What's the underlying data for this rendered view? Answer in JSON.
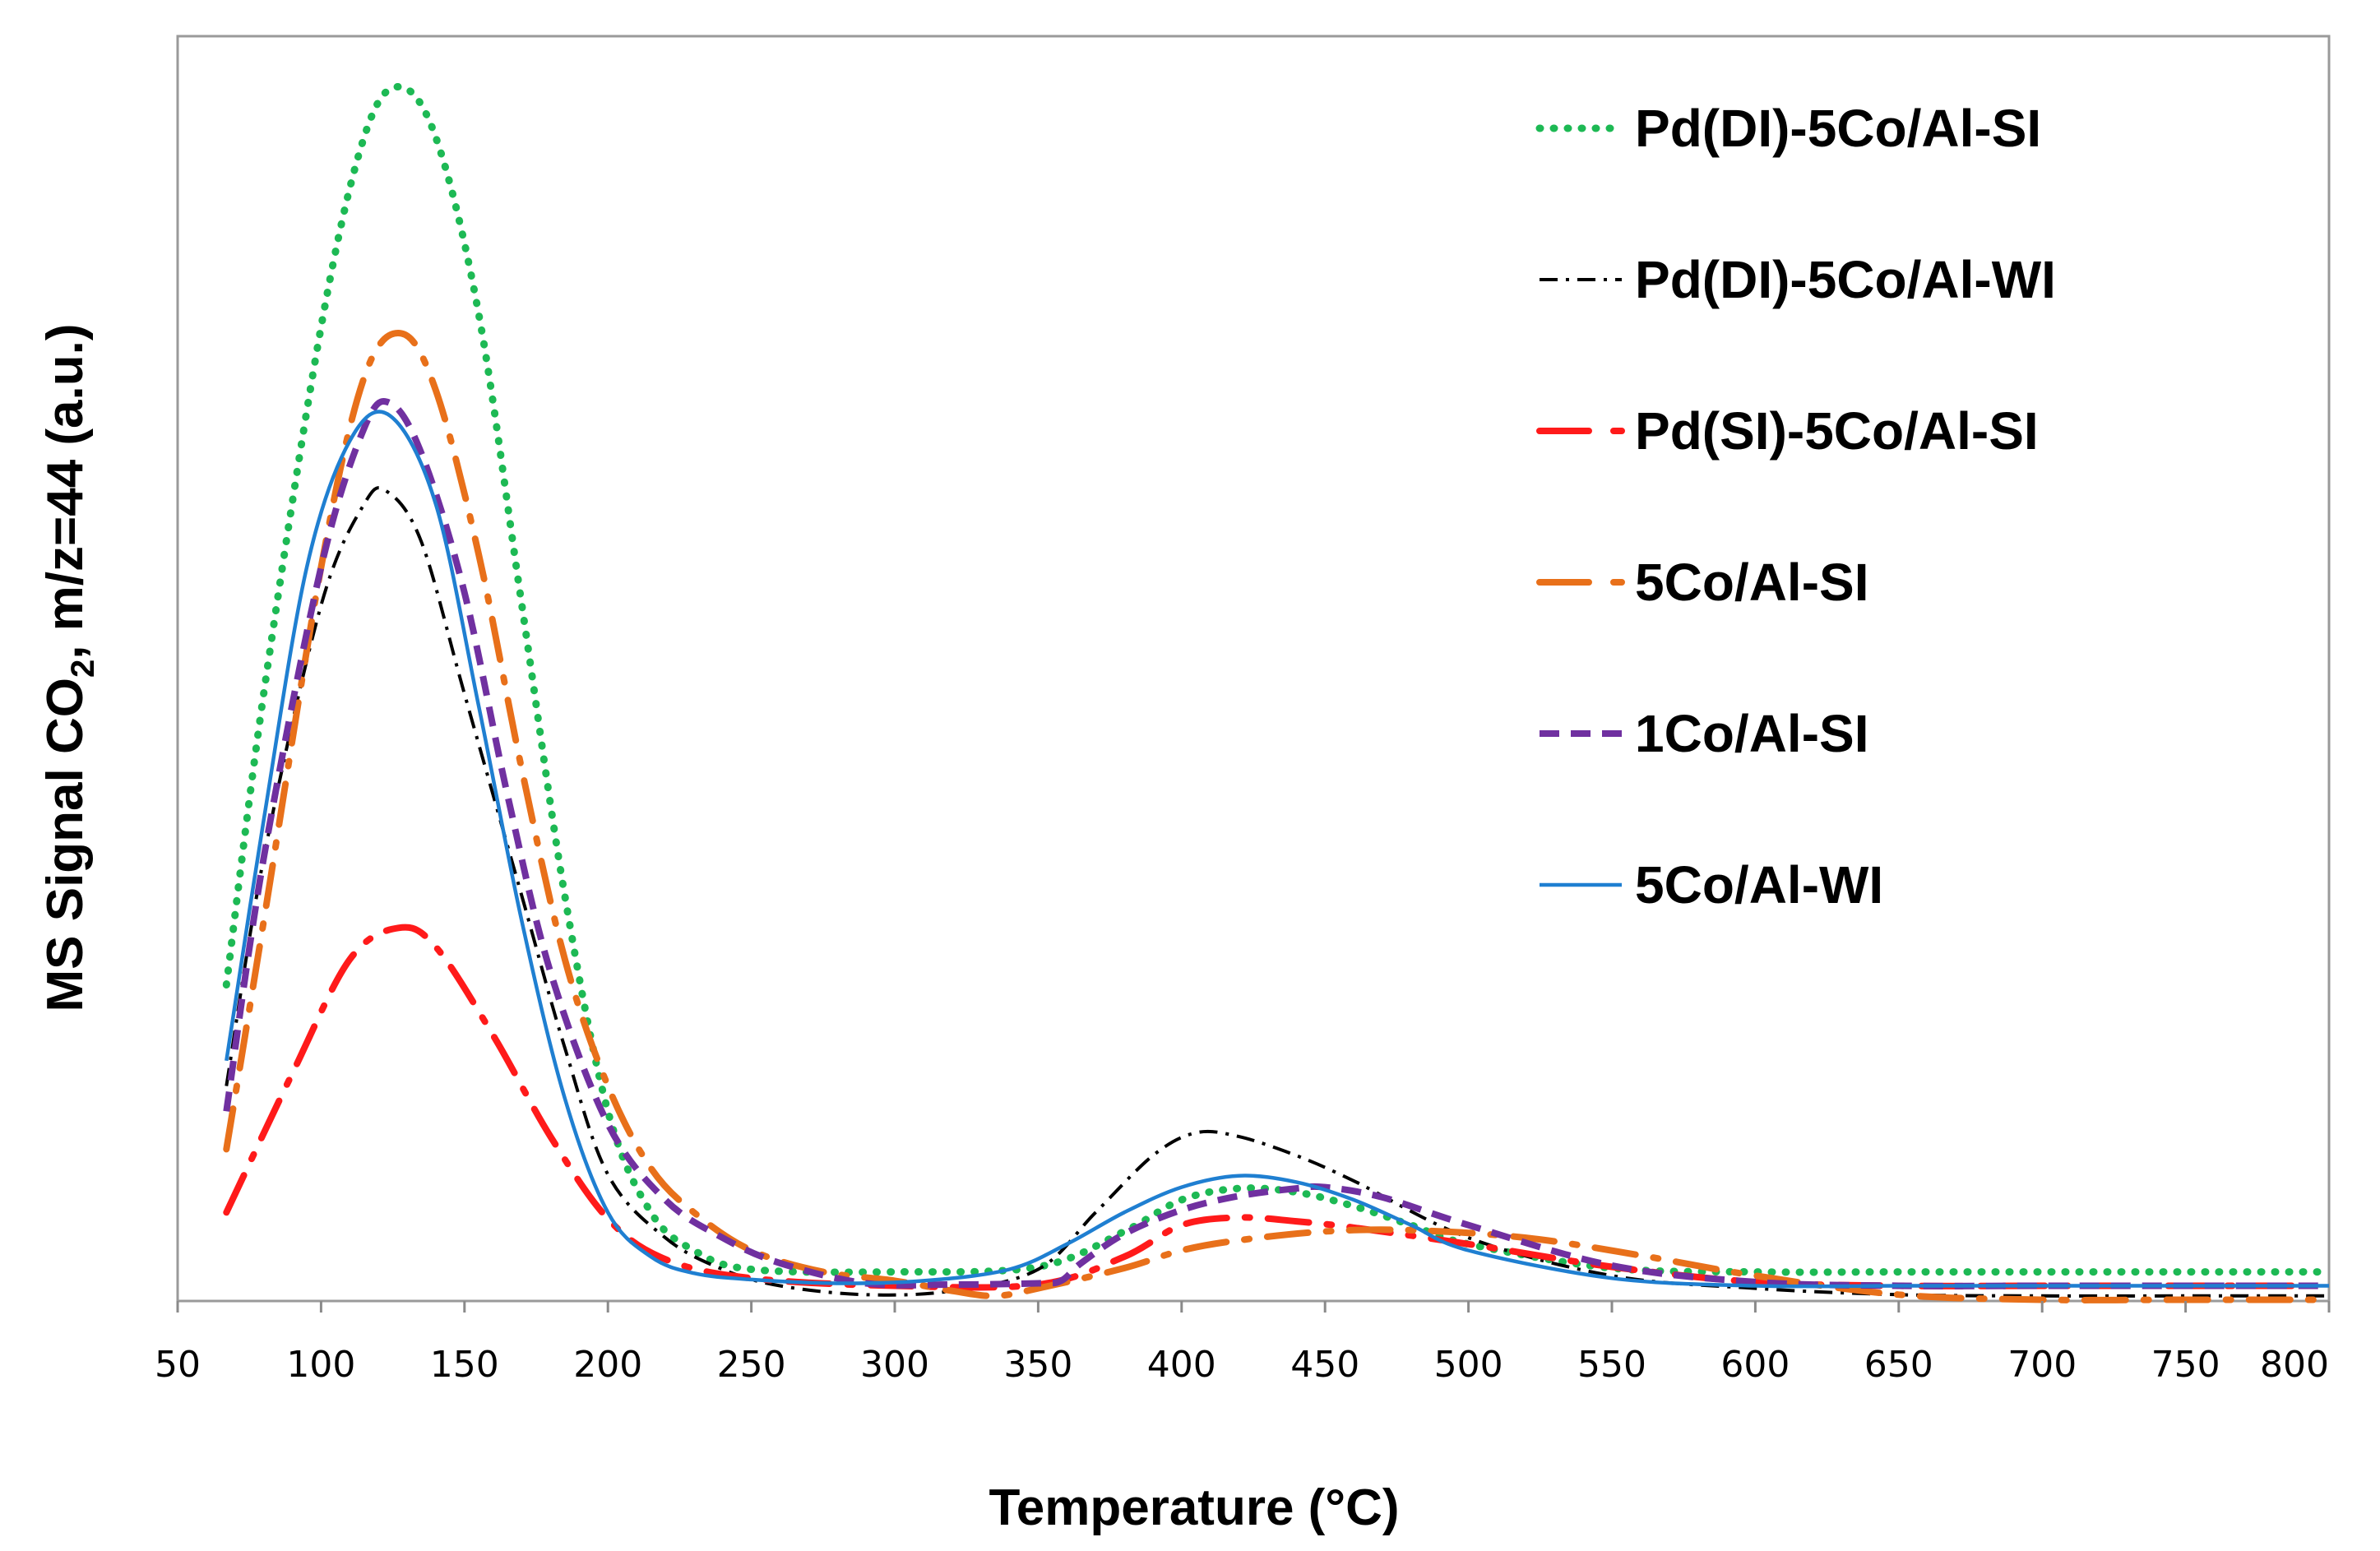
{
  "chart_data": {
    "type": "line",
    "title": "",
    "xlabel": "Temperature (°C)",
    "ylabel_main": "MS Signal CO",
    "ylabel_sub": "2",
    "ylabel_rest": ", m/z=44 (a.u.)",
    "xlim": [
      50,
      800
    ],
    "ylim": [
      0,
      100
    ],
    "xticks": [
      50,
      100,
      150,
      200,
      250,
      300,
      350,
      400,
      450,
      500,
      550,
      600,
      650,
      700,
      750,
      800
    ],
    "grid": false,
    "legend_position": "top-right",
    "series": [
      {
        "name": "Pd(DI)-5Co/Al-SI",
        "color": "#1db954",
        "dash": "dot",
        "x": [
          67,
          80,
          100,
          115,
          127,
          140,
          155,
          170,
          185,
          200,
          215,
          230,
          250,
          300,
          350,
          380,
          400,
          420,
          440,
          460,
          480,
          500,
          550,
          600,
          650,
          700,
          750,
          800
        ],
        "y": [
          25,
          48,
          77,
          92,
          96,
          92,
          78,
          55,
          32,
          15,
          7,
          4,
          2.5,
          2.3,
          2.7,
          5.5,
          8,
          8.9,
          8.6,
          7.5,
          6,
          4.5,
          2.6,
          2.3,
          2.3,
          2.3,
          2.3,
          2.3
        ]
      },
      {
        "name": "Pd(DI)-5Co/Al-WI",
        "color": "#000000",
        "dash": "dashdot",
        "x": [
          67,
          80,
          100,
          115,
          123,
          135,
          150,
          170,
          185,
          200,
          220,
          240,
          260,
          290,
          320,
          350,
          370,
          390,
          405,
          420,
          440,
          460,
          500,
          550,
          600,
          650,
          700,
          750,
          800
        ],
        "y": [
          17,
          35,
          55,
          63,
          64,
          60,
          48,
          32,
          20,
          10,
          5,
          2.5,
          1.2,
          0.5,
          0.8,
          2.5,
          7,
          11.5,
          13.3,
          13,
          11.5,
          9.5,
          5,
          2,
          1,
          0.5,
          0.4,
          0.4,
          0.4
        ]
      },
      {
        "name": "Pd(SI)-5Co/Al-SI",
        "color": "#ff1a1a",
        "dash": "longdashdot",
        "x": [
          67,
          90,
          110,
          127,
          140,
          160,
          180,
          200,
          220,
          250,
          300,
          350,
          380,
          400,
          420,
          440,
          460,
          500,
          550,
          600,
          650,
          700,
          750,
          800
        ],
        "y": [
          7,
          18,
          27,
          29.5,
          28,
          21,
          13,
          6.5,
          3.3,
          1.8,
          1.2,
          1.3,
          3.5,
          6,
          6.6,
          6.3,
          5.8,
          4.5,
          2.7,
          1.5,
          1.2,
          1.2,
          1.2,
          1.2
        ]
      },
      {
        "name": "5Co/Al-SI",
        "color": "#e8701a",
        "dash": "longdashdot",
        "x": [
          67,
          80,
          100,
          115,
          128,
          140,
          155,
          170,
          185,
          200,
          215,
          230,
          250,
          275,
          300,
          320,
          335,
          350,
          380,
          400,
          420,
          450,
          480,
          520,
          560,
          600,
          650,
          700,
          750,
          800
        ],
        "y": [
          12,
          30,
          58,
          73,
          76.5,
          72,
          59,
          42,
          27,
          17,
          10.5,
          7,
          4,
          2.3,
          1.6,
          0.8,
          0.4,
          1,
          2.6,
          4,
          4.8,
          5.5,
          5.6,
          5,
          3.6,
          2,
          0.5,
          0.1,
          0.1,
          0.1
        ]
      },
      {
        "name": "1Co/Al-SI",
        "color": "#7030a0",
        "dash": "dash",
        "x": [
          67,
          80,
          100,
          115,
          124,
          135,
          150,
          165,
          180,
          200,
          220,
          240,
          260,
          290,
          320,
          350,
          358,
          365,
          380,
          400,
          420,
          440,
          450,
          470,
          500,
          550,
          600,
          650,
          700,
          750,
          800
        ],
        "y": [
          15,
          35,
          58,
          69,
          71,
          67,
          56,
          40,
          26,
          14,
          8,
          5,
          3,
          1.4,
          1.3,
          1.4,
          1.6,
          3,
          5.3,
          7.2,
          8.3,
          8.9,
          9,
          8.2,
          6,
          2.8,
          1.5,
          1.2,
          1.2,
          1.2,
          1.2
        ]
      },
      {
        "name": "5Co/Al-WI",
        "color": "#1f7fd1",
        "dash": "solid",
        "x": [
          67,
          80,
          95,
          110,
          124,
          140,
          155,
          170,
          185,
          200,
          215,
          230,
          250,
          280,
          310,
          340,
          360,
          380,
          400,
          420,
          440,
          460,
          480,
          500,
          550,
          600,
          650,
          700,
          750,
          800
        ],
        "y": [
          19,
          38,
          58,
          68,
          70,
          63,
          47,
          30,
          16,
          7,
          3.5,
          2.2,
          1.7,
          1.4,
          1.6,
          2.5,
          4.5,
          7,
          9,
          9.9,
          9.4,
          8,
          6,
          4,
          1.8,
          1.2,
          1.2,
          1.2,
          1.2,
          1.2
        ]
      }
    ]
  }
}
